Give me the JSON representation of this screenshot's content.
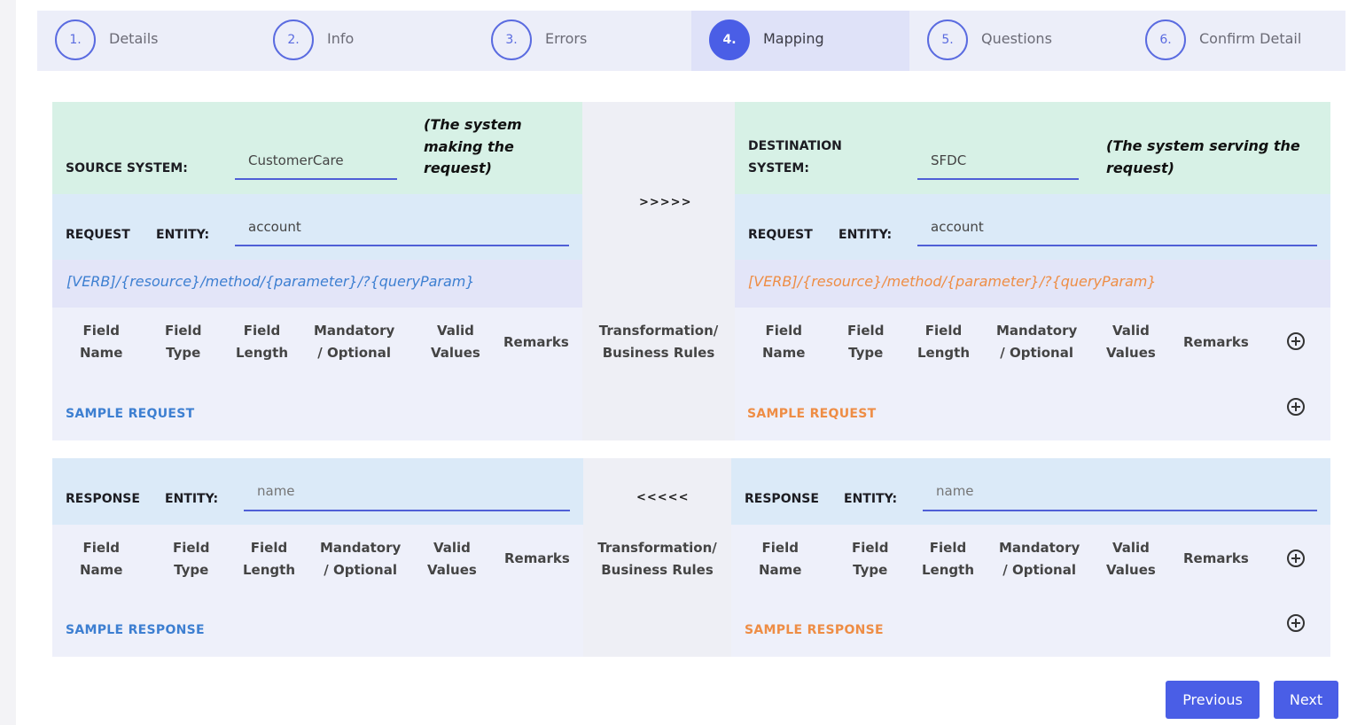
{
  "stepper": [
    {
      "number": "1.",
      "label": "Details"
    },
    {
      "number": "2.",
      "label": "Info"
    },
    {
      "number": "3.",
      "label": "Errors"
    },
    {
      "number": "4.",
      "label": "Mapping",
      "active": true
    },
    {
      "number": "5.",
      "label": "Questions"
    },
    {
      "number": "6.",
      "label": "Confirm Detail"
    }
  ],
  "source": {
    "system_label": "SOURCE SYSTEM:",
    "system_value": "CustomerCare",
    "system_note": "(The system making the request)",
    "request_label": "REQUEST",
    "entity_label": "ENTITY:",
    "request_entity": "account",
    "endpoint": "[VERB]/{resource}/method/{parameter}/?{queryParam}",
    "sample_request": "SAMPLE REQUEST",
    "response_label": "RESPONSE",
    "response_entity_placeholder": "name",
    "sample_response": "SAMPLE RESPONSE"
  },
  "destination": {
    "system_label": "DESTINATION SYSTEM:",
    "system_value": "SFDC",
    "system_note": "(The system serving the request)",
    "request_label": "REQUEST",
    "entity_label": "ENTITY:",
    "request_entity": "account",
    "endpoint": "[VERB]/{resource}/method/{parameter}/?{queryParam}",
    "sample_request": "SAMPLE REQUEST",
    "response_label": "RESPONSE",
    "response_entity_placeholder": "name",
    "sample_response": "SAMPLE RESPONSE"
  },
  "columns": {
    "field_name": [
      "Field",
      "Name"
    ],
    "field_type": [
      "Field",
      "Type"
    ],
    "field_length": [
      "Field",
      "Length"
    ],
    "mandatory": [
      "Mandatory",
      "/ Optional"
    ],
    "valid_values": [
      "Valid",
      "Values"
    ],
    "remarks": "Remarks",
    "transformation": [
      "Transformation/",
      "Business Rules"
    ]
  },
  "arrows": {
    "request": ">>>>>",
    "response": "<<<<<"
  },
  "buttons": {
    "previous": "Previous",
    "next": "Next"
  },
  "colors": {
    "accent": "#4a5ee6",
    "source_link": "#3d7fd1",
    "destination_link": "#ee8d45"
  }
}
